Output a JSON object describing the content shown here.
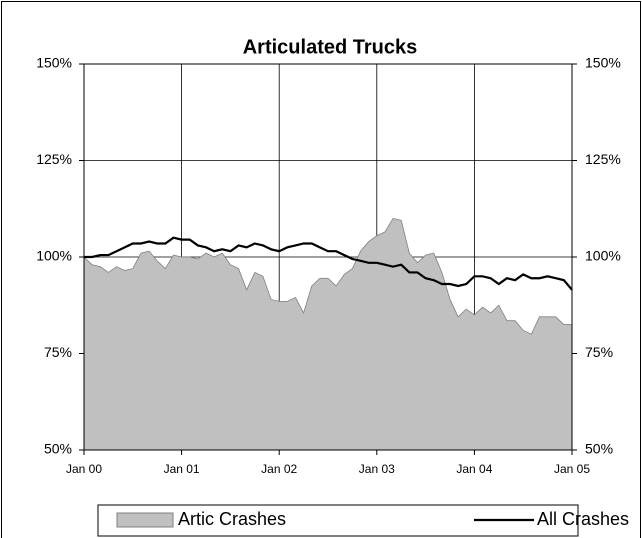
{
  "chart_data": {
    "type": "area",
    "title": "Articulated Trucks",
    "categories": [
      "Jan 00",
      null,
      null,
      null,
      null,
      null,
      null,
      null,
      null,
      null,
      null,
      null,
      "Jan 01",
      null,
      null,
      null,
      null,
      null,
      null,
      null,
      null,
      null,
      null,
      null,
      "Jan 02",
      null,
      null,
      null,
      null,
      null,
      null,
      null,
      null,
      null,
      null,
      null,
      "Jan 03",
      null,
      null,
      null,
      null,
      null,
      null,
      null,
      null,
      null,
      null,
      null,
      "Jan 04",
      null,
      null,
      null,
      null,
      null,
      null,
      null,
      null,
      null,
      null,
      null,
      "Jan 05"
    ],
    "series": [
      {
        "name": "Artic Crashes",
        "type": "area",
        "color": "#c0c0c0",
        "values": [
          100,
          98,
          97.5,
          96,
          97.5,
          96.5,
          97,
          101,
          101.5,
          99,
          97,
          100.5,
          100,
          100,
          99.5,
          101,
          100,
          101,
          98,
          97,
          91.5,
          96,
          95,
          89,
          88.5,
          88.5,
          89.5,
          85.5,
          92.5,
          94.5,
          94.5,
          92.5,
          95.5,
          97,
          101.5,
          104,
          105.5,
          106.5,
          110,
          109.5,
          101,
          98.5,
          100.5,
          101,
          96,
          89,
          84.5,
          86.5,
          85,
          87,
          85.5,
          87.5,
          83.5,
          83.5,
          81,
          80,
          84.5,
          84.5,
          84.5,
          82.5,
          82.5
        ]
      },
      {
        "name": "All Crashes",
        "type": "line",
        "color": "#000000",
        "values": [
          100,
          100,
          100.5,
          100.5,
          101.5,
          102.5,
          103.5,
          103.5,
          104,
          103.5,
          103.5,
          105,
          104.5,
          104.5,
          103,
          102.5,
          101.5,
          102,
          101.5,
          103,
          102.5,
          103.5,
          103,
          102,
          101.5,
          102.5,
          103,
          103.5,
          103.5,
          102.5,
          101.5,
          101.5,
          100.5,
          99.5,
          99,
          98.5,
          98.5,
          98,
          97.5,
          98,
          96,
          96,
          94.5,
          94,
          93,
          93,
          92.5,
          93,
          95,
          95,
          94.5,
          93,
          94.5,
          94,
          95.5,
          94.5,
          94.5,
          95,
          94.5,
          94,
          91.5
        ]
      }
    ],
    "ylim": [
      50,
      150
    ],
    "yticks": [
      {
        "value": 50,
        "label": "50%"
      },
      {
        "value": 75,
        "label": "75%"
      },
      {
        "value": 100,
        "label": "100%"
      },
      {
        "value": 125,
        "label": "125%"
      },
      {
        "value": 150,
        "label": "150%"
      }
    ],
    "y2lim": [
      50,
      150
    ],
    "y2ticks": [
      {
        "value": 50,
        "label": "50%"
      },
      {
        "value": 75,
        "label": "75%"
      },
      {
        "value": 100,
        "label": "100%"
      },
      {
        "value": 125,
        "label": "125%"
      },
      {
        "value": 150,
        "label": "150%"
      }
    ],
    "grid": true,
    "legend": "bottom"
  }
}
